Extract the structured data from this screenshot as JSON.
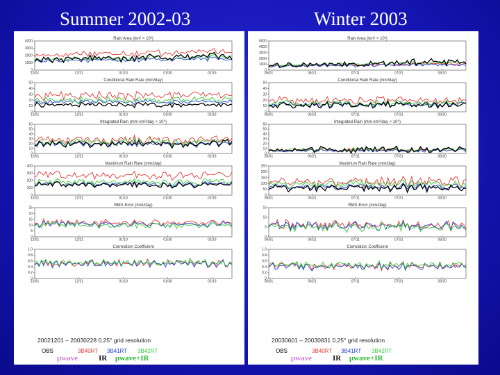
{
  "titles": {
    "left": "Summer 2002-03",
    "right": "Winter 2003"
  },
  "colors": {
    "background": "#1616b8",
    "obs": "#000000",
    "b40rt": "#e53935",
    "b41rt": "#1e3fd0",
    "b42rt": "#35c93a"
  },
  "legend": {
    "products": [
      "OBS",
      "3B40RT",
      "3B41RT",
      "3B42RT"
    ],
    "sources": [
      "μwave",
      "IR",
      "μwave+IR"
    ],
    "source_colors": [
      "#d37be0",
      "#1a1a1a",
      "#2cb832"
    ]
  },
  "panel_titles": [
    "Rain Area (km² × 10³)",
    "Conditional Rain Rate (mm/day)",
    "Integrated Rain (mm·km²/day × 10⁶)",
    "Maximum Rain Rate (mm/day)",
    "RMS Error (mm/day)",
    "Correlation Coefficient"
  ],
  "chart_data": [
    {
      "type": "line",
      "title": "Summer 2002-03",
      "footer": "20021201 – 20030228    0.25° grid resolution",
      "x_ticks": [
        "12/01",
        "12/21",
        "01/10",
        "01/30",
        "02/19"
      ],
      "n_days": 90,
      "series_names": [
        "OBS",
        "3B40RT",
        "3B41RT",
        "3B42RT"
      ],
      "panels": [
        {
          "name": "Rain Area",
          "ylim": [
            0,
            4000
          ],
          "yticks": [
            "0",
            "1000",
            "2000",
            "3000",
            "4000"
          ],
          "base": [
            1500,
            2100,
            1300,
            1500
          ],
          "amp": [
            650,
            600,
            350,
            450
          ]
        },
        {
          "name": "Conditional Rain Rate",
          "ylim": [
            0,
            50
          ],
          "yticks": [
            "0",
            "10",
            "20",
            "30",
            "40",
            "50"
          ],
          "base": [
            12,
            28,
            17,
            20
          ],
          "amp": [
            5,
            9,
            5,
            7
          ]
        },
        {
          "name": "Integrated Rain",
          "ylim": [
            0,
            60
          ],
          "yticks": [
            "0",
            "10",
            "20",
            "30",
            "40",
            "50",
            "60"
          ],
          "base": [
            20,
            28,
            20,
            24
          ],
          "amp": [
            10,
            10,
            8,
            9
          ]
        },
        {
          "name": "Maximum Rain Rate",
          "ylim": [
            0,
            400
          ],
          "yticks": [
            "0",
            "100",
            "200",
            "300",
            "400"
          ],
          "base": [
            140,
            270,
            150,
            180
          ],
          "amp": [
            45,
            70,
            45,
            55
          ]
        },
        {
          "name": "RMS Error",
          "ylim": [
            0,
            25
          ],
          "yticks": [
            "0",
            "5",
            "10",
            "15",
            "20",
            "25"
          ],
          "base": [
            0,
            12,
            11,
            10
          ],
          "amp": [
            0,
            3.5,
            3.5,
            3.5
          ]
        },
        {
          "name": "Correlation Coefficient",
          "ylim": [
            0,
            1
          ],
          "yticks": [
            "0",
            "0.2",
            "0.4",
            "0.6",
            "0.8",
            "1.0"
          ],
          "base": [
            0,
            0.52,
            0.5,
            0.55
          ],
          "amp": [
            0,
            0.16,
            0.16,
            0.16
          ]
        }
      ]
    },
    {
      "type": "line",
      "title": "Winter 2003",
      "footer": "20030601 – 20030831    0.25° grid resolution",
      "x_ticks": [
        "06/01",
        "06/21",
        "07/11",
        "07/31",
        "08/20"
      ],
      "n_days": 92,
      "series_names": [
        "OBS",
        "3B40RT",
        "3B41RT",
        "3B42RT"
      ],
      "panels": [
        {
          "name": "Rain Area",
          "ylim": [
            0,
            5000
          ],
          "yticks": [
            "0",
            "1000",
            "2000",
            "3000",
            "4000",
            "5000"
          ],
          "base": [
            900,
            800,
            700,
            1000
          ],
          "amp": [
            700,
            350,
            300,
            400
          ]
        },
        {
          "name": "Conditional Rain Rate",
          "ylim": [
            0,
            50
          ],
          "yticks": [
            "0",
            "10",
            "20",
            "30",
            "40",
            "50"
          ],
          "base": [
            12,
            20,
            13,
            15
          ],
          "amp": [
            7,
            9,
            6,
            7
          ]
        },
        {
          "name": "Integrated Rain",
          "ylim": [
            0,
            60
          ],
          "yticks": [
            "0",
            "10",
            "20",
            "30",
            "40",
            "50",
            "60"
          ],
          "base": [
            8,
            8,
            6,
            8
          ],
          "amp": [
            8,
            5,
            4,
            5
          ]
        },
        {
          "name": "Maximum Rain Rate",
          "ylim": [
            0,
            250
          ],
          "yticks": [
            "0",
            "50",
            "100",
            "150",
            "200",
            "250"
          ],
          "base": [
            60,
            110,
            70,
            90
          ],
          "amp": [
            40,
            55,
            35,
            45
          ]
        },
        {
          "name": "RMS Error",
          "ylim": [
            0,
            15
          ],
          "yticks": [
            "0",
            "5",
            "10",
            "15"
          ],
          "base": [
            0,
            6,
            5.5,
            5
          ],
          "amp": [
            0,
            3,
            3,
            3
          ]
        },
        {
          "name": "Correlation Coefficient",
          "ylim": [
            0,
            1
          ],
          "yticks": [
            "0",
            "0.2",
            "0.4",
            "0.6",
            "0.8",
            "1.0"
          ],
          "base": [
            0,
            0.42,
            0.4,
            0.45
          ],
          "amp": [
            0,
            0.17,
            0.17,
            0.17
          ]
        }
      ]
    }
  ]
}
